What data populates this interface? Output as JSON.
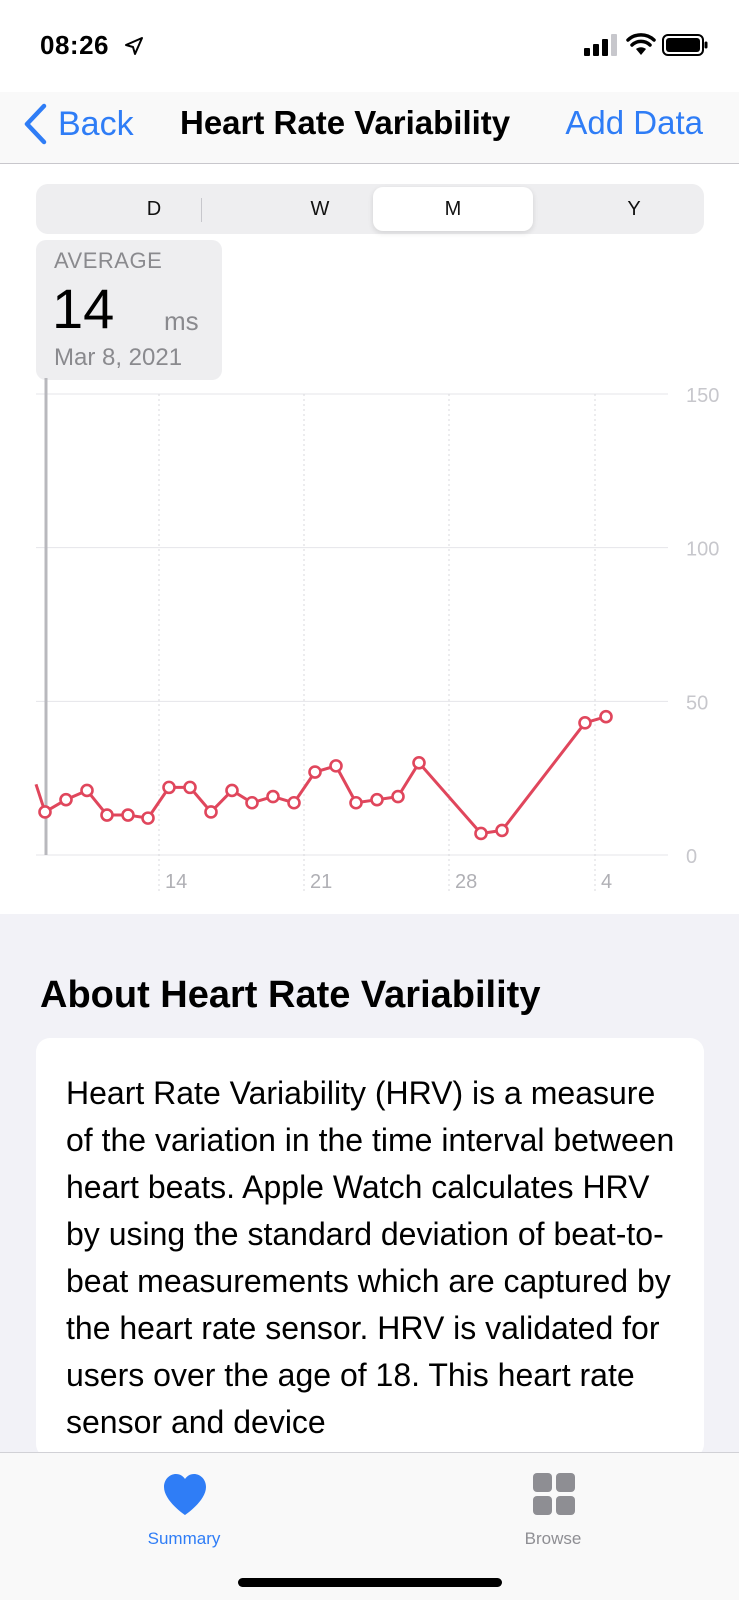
{
  "status_bar": {
    "time": "08:26"
  },
  "nav": {
    "back_label": "Back",
    "title": "Heart Rate Variability",
    "action_label": "Add Data"
  },
  "segments": [
    {
      "label": "D",
      "selected": false
    },
    {
      "label": "W",
      "selected": false
    },
    {
      "label": "M",
      "selected": true
    },
    {
      "label": "Y",
      "selected": false
    }
  ],
  "average": {
    "label": "AVERAGE",
    "value": "14",
    "unit": "ms",
    "date": "Mar 8, 2021"
  },
  "chart_data": {
    "type": "line",
    "x_labels": [
      "14",
      "21",
      "28",
      "4"
    ],
    "y_ticks": [
      "150",
      "100",
      "50",
      "0"
    ],
    "ylim": [
      0,
      150
    ],
    "grid": true,
    "color": "#e0465c",
    "series": [
      {
        "values": [
          23,
          14,
          18,
          21,
          13,
          13,
          12,
          22,
          22,
          14,
          21,
          17,
          19,
          17,
          27,
          29,
          17,
          18,
          19,
          30,
          7,
          8,
          43,
          45
        ],
        "x_days": [
          "Mar 7 (partial)",
          "Mar 8",
          "Mar 9",
          "Mar 10",
          "Mar 11",
          "Mar 12",
          "Mar 13",
          "Mar 14",
          "Mar 15",
          "Mar 16",
          "Mar 17",
          "Mar 18",
          "Mar 19",
          "Mar 20",
          "Mar 21",
          "Mar 22",
          "Mar 23",
          "Mar 24",
          "Mar 25",
          "Mar 26",
          "Mar 29",
          "Mar 30",
          "Apr 3",
          "Apr 4"
        ]
      }
    ]
  },
  "about": {
    "title": "About Heart Rate Variability",
    "body": "Heart Rate Variability (HRV) is a measure of the variation in the time interval between heart beats. Apple Watch calculates HRV by using the standard deviation of beat-to-beat measurements which are captured by the heart rate sensor. HRV is validated for users over the age of 18. This heart rate sensor and device"
  },
  "tabs": [
    {
      "label": "Summary",
      "icon": "heart-icon",
      "active": true,
      "color": "#2f7df6"
    },
    {
      "label": "Browse",
      "icon": "grid-icon",
      "active": false,
      "color": "#8e8e93"
    }
  ]
}
